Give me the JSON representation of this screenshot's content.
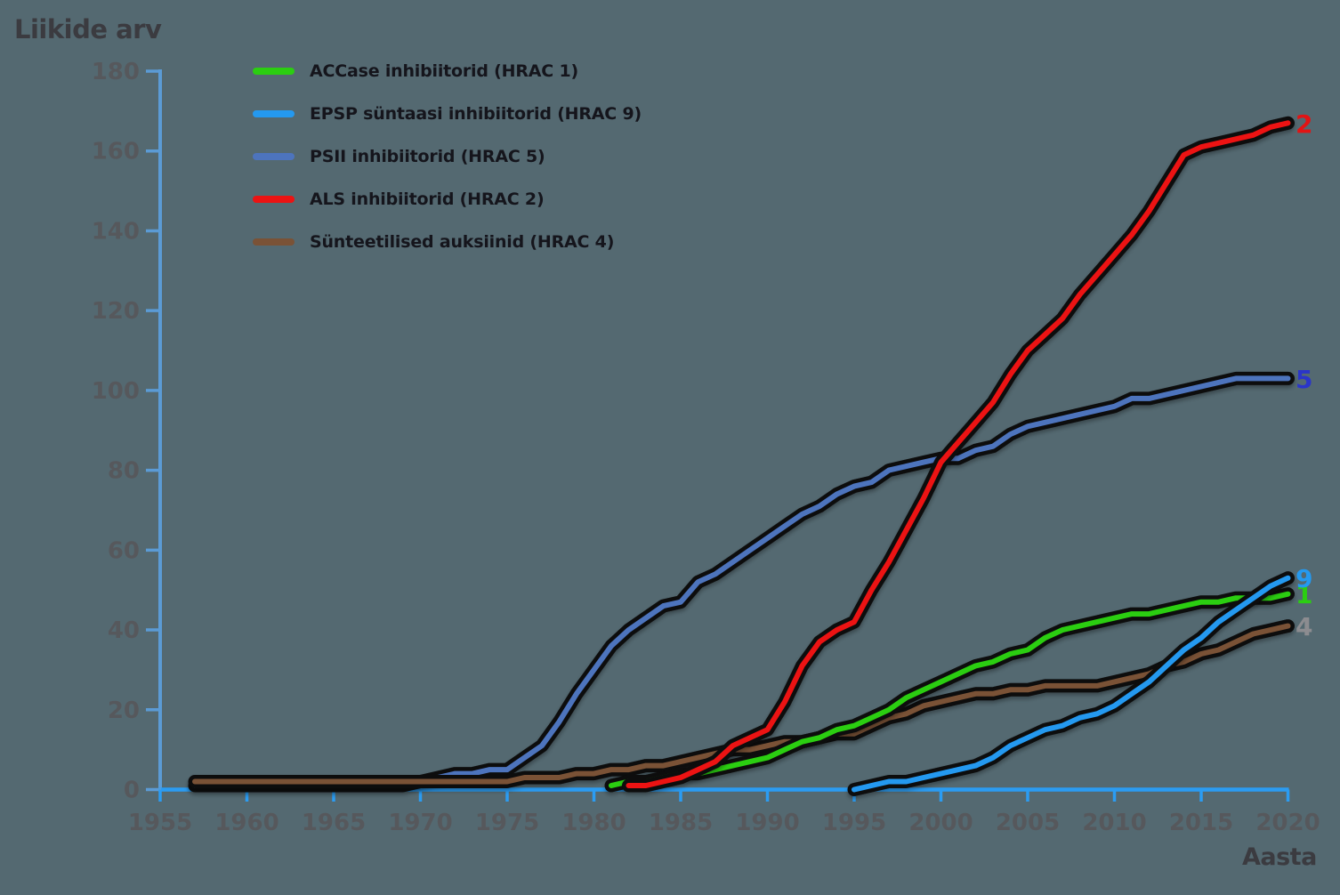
{
  "background": "#546971",
  "axis": {
    "y_axis_color": "#5B9BD5",
    "x_axis_color": "#2B9CF2",
    "tick_label_color": "#57575B"
  },
  "legend": {
    "items": [
      {
        "label": "ACCase inhibiitorid (HRAC 1)",
        "color": "#2BCE11"
      },
      {
        "label": "EPSP süntaasi inhibiitorid (HRAC 9)",
        "color": "#2499F0"
      },
      {
        "label": "PSII inhibiitorid (HRAC 5)",
        "color": "#4D74BD"
      },
      {
        "label": "ALS inhibiitorid (HRAC 2)",
        "color": "#EC1313"
      },
      {
        "label": "Sünteetilised auksiinid (HRAC 4)",
        "color": "#7A5236"
      }
    ]
  },
  "chart_data": {
    "type": "line",
    "title": "",
    "ylabel": "Liikide arv",
    "xlabel": "Aasta",
    "xlim": [
      1955,
      2020
    ],
    "ylim": [
      0,
      180
    ],
    "grid": false,
    "legend_position": "top-left",
    "x_ticks": [
      1955,
      1960,
      1965,
      1970,
      1975,
      1980,
      1985,
      1990,
      1995,
      2000,
      2005,
      2010,
      2015,
      2020
    ],
    "y_ticks": [
      0,
      20,
      40,
      60,
      80,
      100,
      120,
      140,
      160,
      180
    ],
    "series": [
      {
        "name": "ACCase inhibiitorid (HRAC 1)",
        "color": "#2BCE11",
        "z": 3,
        "end_label": "1",
        "end_label_color": "#2BCE11",
        "start_year": 1981,
        "values": [
          1,
          2,
          2,
          3,
          4,
          4,
          5,
          6,
          7,
          8,
          10,
          12,
          13,
          15,
          16,
          18,
          20,
          23,
          25,
          27,
          29,
          31,
          32,
          34,
          35,
          38,
          40,
          41,
          42,
          43,
          44,
          44,
          45,
          46,
          47,
          47,
          48,
          48,
          48,
          49
        ]
      },
      {
        "name": "EPSP süntaasi inhibiitorid (HRAC 9)",
        "color": "#2499F0",
        "z": 5,
        "end_label": "9",
        "end_label_color": "#2499F0",
        "start_year": 1995,
        "values": [
          0,
          1,
          2,
          2,
          3,
          4,
          5,
          6,
          8,
          11,
          13,
          15,
          16,
          18,
          19,
          21,
          24,
          27,
          31,
          35,
          38,
          42,
          45,
          48,
          51,
          53
        ]
      },
      {
        "name": "PSII inhibiitorid (HRAC 5)",
        "color": "#4D74BD",
        "z": 1,
        "end_label": "5",
        "end_label_color": "#2A35C9",
        "start_year": 1957,
        "values": [
          1,
          1,
          1,
          1,
          1,
          1,
          1,
          1,
          1,
          1,
          1,
          1,
          1,
          2,
          3,
          4,
          4,
          5,
          5,
          8,
          11,
          17,
          24,
          30,
          36,
          40,
          43,
          46,
          47,
          52,
          54,
          57,
          60,
          63,
          66,
          69,
          71,
          74,
          76,
          77,
          80,
          81,
          82,
          83,
          83,
          85,
          86,
          89,
          91,
          92,
          93,
          94,
          95,
          96,
          98,
          98,
          99,
          100,
          101,
          102,
          103,
          103,
          103,
          103
        ]
      },
      {
        "name": "ALS inhibiitorid (HRAC 2)",
        "color": "#EC1313",
        "z": 4,
        "end_label": "2",
        "end_label_color": "#E21414",
        "start_year": 1982,
        "values": [
          1,
          1,
          2,
          3,
          5,
          7,
          11,
          13,
          15,
          22,
          31,
          37,
          40,
          42,
          50,
          57,
          65,
          73,
          82,
          87,
          92,
          97,
          104,
          110,
          114,
          118,
          124,
          129,
          134,
          139,
          145,
          152,
          159,
          161,
          162,
          163,
          164,
          166,
          167
        ]
      },
      {
        "name": "Sünteetilised auksiinid (HRAC 4)",
        "color": "#7A5236",
        "z": 2,
        "end_label": "4",
        "end_label_color": "#8C8C90",
        "start_year": 1957,
        "values": [
          2,
          2,
          2,
          2,
          2,
          2,
          2,
          2,
          2,
          2,
          2,
          2,
          2,
          2,
          2,
          2,
          2,
          2,
          2,
          3,
          3,
          3,
          4,
          4,
          5,
          5,
          6,
          6,
          7,
          8,
          9,
          10,
          10,
          11,
          12,
          12,
          13,
          14,
          14,
          16,
          18,
          19,
          21,
          22,
          23,
          24,
          24,
          25,
          25,
          26,
          26,
          26,
          26,
          27,
          28,
          29,
          31,
          32,
          34,
          35,
          37,
          39,
          40,
          41
        ]
      }
    ]
  }
}
